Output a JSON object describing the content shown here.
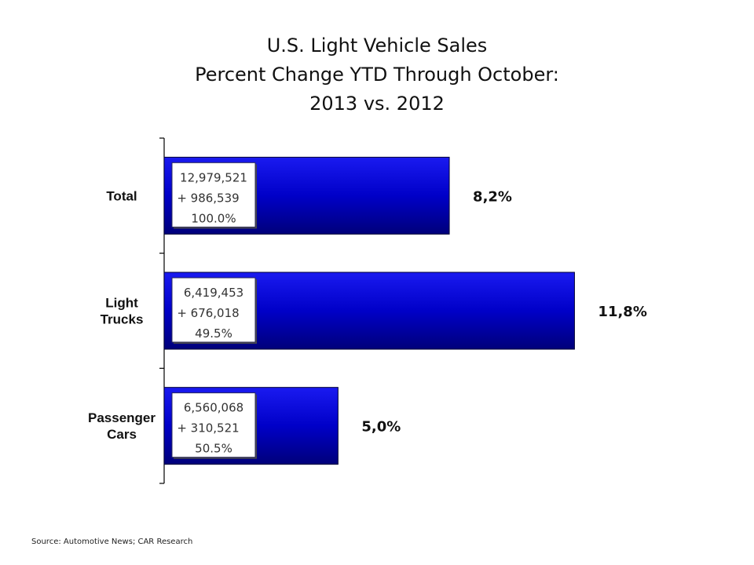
{
  "title_lines": [
    "U.S. Light Vehicle Sales",
    "Percent Change YTD Through October:",
    "2013 vs. 2012"
  ],
  "source": "Source: Automotive News; CAR Research",
  "colors": {
    "bar_dark": "#00007a",
    "bar_mid": "#0000c8",
    "bar_light": "#1a1af0",
    "axis": "#000000"
  },
  "chart_data": {
    "type": "bar",
    "orientation": "horizontal",
    "categories": [
      "Total",
      "Light Trucks",
      "Passenger Cars"
    ],
    "category_lines": [
      [
        "Total"
      ],
      [
        "Light",
        "Trucks"
      ],
      [
        "Passenger",
        "Cars"
      ]
    ],
    "values": [
      8.2,
      11.8,
      5.0
    ],
    "value_labels": [
      "8,2%",
      "11,8%",
      "5,0%"
    ],
    "xlim": [
      0,
      12.4
    ],
    "annotations": [
      [
        "12,979,521",
        "+ 986,539",
        "100.0%"
      ],
      [
        "6,419,453",
        "+ 676,018",
        "49.5%"
      ],
      [
        "6,560,068",
        "+ 310,521",
        "50.5%"
      ]
    ]
  }
}
